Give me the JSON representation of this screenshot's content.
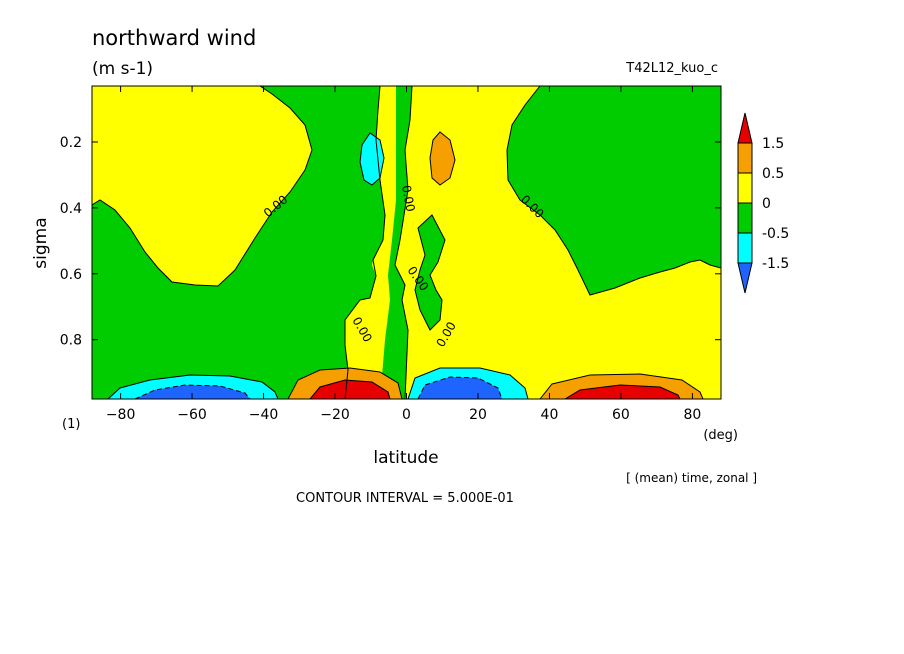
{
  "chart_data": {
    "type": "heatmap",
    "title": "northward wind",
    "units": "(m s-1)",
    "run_label": "T42L12_kuo_c",
    "xlabel": "latitude",
    "x_unit": "(deg)",
    "ylabel": "sigma",
    "level_note": "(1)",
    "averaging_note": "[ (mean) time, zonal ]",
    "contour_interval_text": "CONTOUR INTERVAL = 5.000E-01",
    "xlim": [
      -88,
      88
    ],
    "ylim": [
      0.03,
      0.98
    ],
    "y_inverted": true,
    "x_ticks": [
      -80,
      -60,
      -40,
      -20,
      0,
      20,
      40,
      60,
      80
    ],
    "y_ticks": [
      0.2,
      0.4,
      0.6,
      0.8
    ],
    "color_levels": [
      {
        "label": "1.5",
        "color": "#e60000"
      },
      {
        "label": "0.5",
        "color": "#f5a000"
      },
      {
        "label": "0",
        "color": "#ffff00"
      },
      {
        "label": "-0.5",
        "color": "#00cc00"
      },
      {
        "label": "-1.5",
        "color": "#00ffff"
      }
    ],
    "colorbar_colors": {
      "above_1_5": "#e60000",
      "0_5_to_1_5": "#f5a000",
      "0_to_0_5": "#ffff00",
      "neg0_5_to_0": "#00cc00",
      "neg1_5_to_neg0_5": "#00ffff",
      "below_neg1_5": "#1e64ff"
    },
    "contour_labels": [
      "0.00",
      "0.00",
      "0.00",
      "0.00",
      "0.00",
      "0.00"
    ],
    "series": [
      {
        "region": "southern high latitudes aloft",
        "lat_range": [
          -88,
          -40
        ],
        "sigma_range": [
          0.03,
          0.45
        ],
        "sign": "positive",
        "range": [
          0,
          0.5
        ]
      },
      {
        "region": "southern mid latitudes mid-levels",
        "lat_range": [
          -88,
          -30
        ],
        "sigma_range": [
          0.45,
          0.9
        ],
        "sign": "negative",
        "range": [
          -0.5,
          0
        ]
      },
      {
        "region": "southern surface minimum",
        "lat": -60,
        "sigma": 0.97,
        "sign": "negative",
        "min": -1.5
      },
      {
        "region": "southern tropics surface maximum",
        "lat": -15,
        "sigma": 0.97,
        "sign": "positive",
        "max": 1.5
      },
      {
        "region": "northern tropics surface minimum",
        "lat": 12,
        "sigma": 0.97,
        "sign": "negative",
        "min": -1.5
      },
      {
        "region": "northern surface maximum",
        "lat": 60,
        "sigma": 0.97,
        "sign": "positive",
        "max": 1.5
      },
      {
        "region": "upper-level equatorial cell south",
        "lat": -10,
        "sigma": 0.25,
        "sign": "negative",
        "range": [
          -1.5,
          -0.5
        ]
      },
      {
        "region": "upper-level equatorial cell north",
        "lat": 10,
        "sigma": 0.25,
        "sign": "positive",
        "range": [
          0.5,
          1.5
        ]
      },
      {
        "region": "northern high latitudes aloft",
        "lat_range": [
          35,
          88
        ],
        "sigma_range": [
          0.03,
          0.7
        ],
        "sign": "negative",
        "range": [
          -0.5,
          0
        ]
      }
    ]
  }
}
